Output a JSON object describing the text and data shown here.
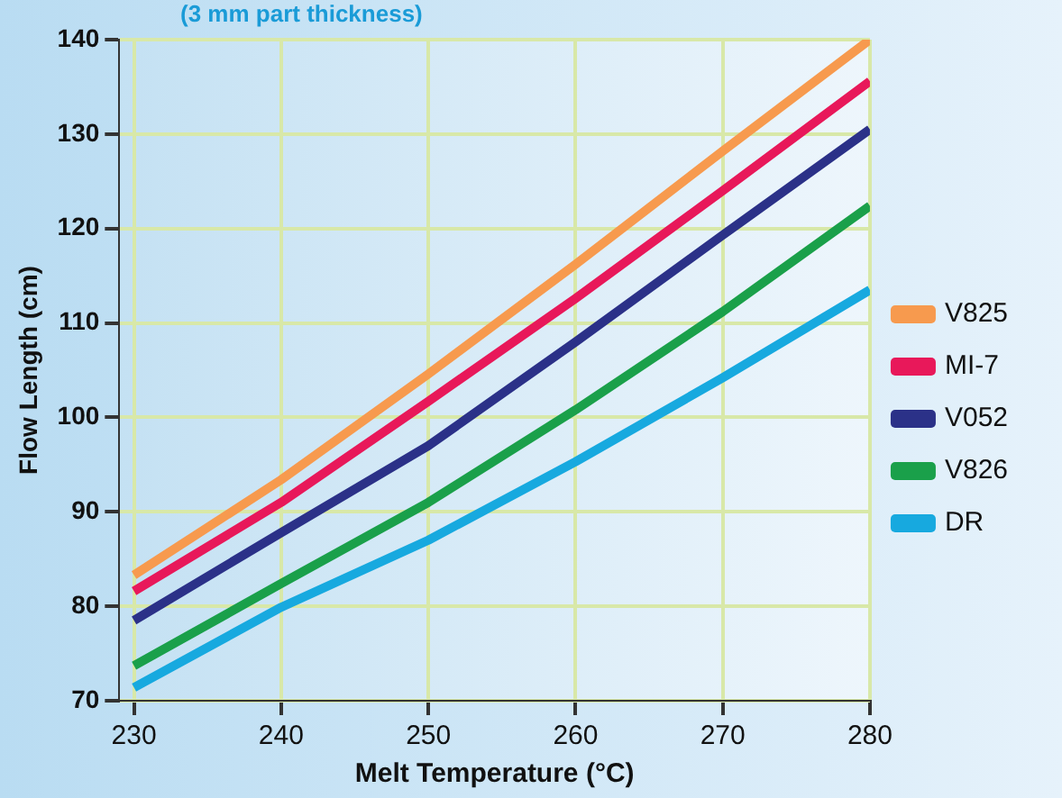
{
  "chart_data": {
    "type": "line",
    "subtitle": "(3 mm part thickness)",
    "xlabel": "Melt Temperature (°C)",
    "ylabel": "Flow Length (cm)",
    "x": [
      230,
      240,
      250,
      260,
      270,
      280
    ],
    "series": [
      {
        "name": "V825",
        "color": "#f79a4e",
        "values": [
          83.3,
          93.4,
          104.6,
          116.2,
          128.2,
          140
        ]
      },
      {
        "name": "MI-7",
        "color": "#e8185a",
        "values": [
          81.6,
          91,
          101.7,
          112.6,
          124,
          135.6
        ]
      },
      {
        "name": "V052",
        "color": "#2b3188",
        "values": [
          78.5,
          87.8,
          97,
          108,
          119.3,
          130.5
        ]
      },
      {
        "name": "V826",
        "color": "#1aa04a",
        "values": [
          73.7,
          82.4,
          91,
          100.8,
          111.2,
          122.4
        ]
      },
      {
        "name": "DR",
        "color": "#17a9df",
        "values": [
          71.4,
          79.9,
          87,
          95.3,
          104.2,
          113.5
        ]
      }
    ],
    "xlim": [
      229,
      280
    ],
    "xticks": [
      230,
      240,
      250,
      260,
      270,
      280
    ],
    "ylim": [
      70,
      140
    ],
    "yticks": [
      70,
      80,
      90,
      100,
      110,
      120,
      130,
      140
    ],
    "grid": true,
    "legend": "right",
    "marker": "none",
    "line_style": "solid"
  }
}
